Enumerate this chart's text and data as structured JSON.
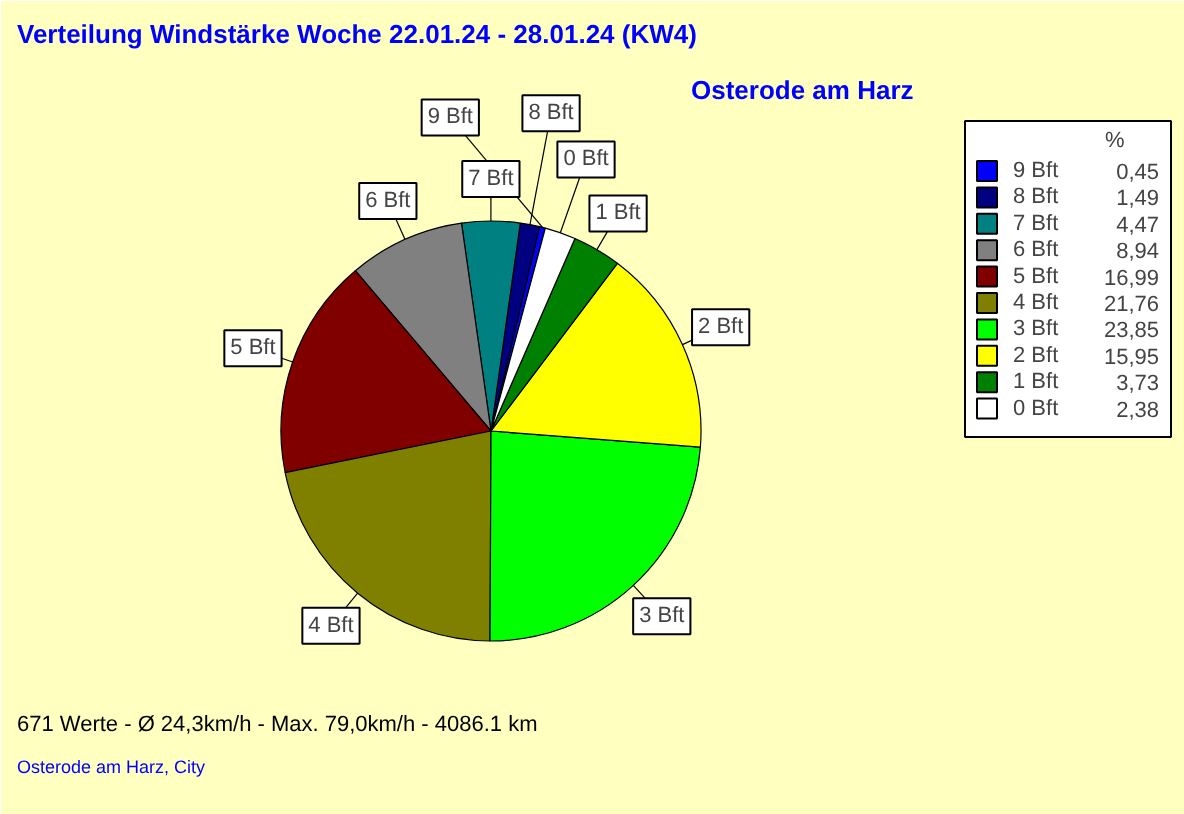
{
  "chart_data": {
    "type": "pie",
    "title": "Verteilung Windstärke  Woche 22.01.24 - 28.01.24 (KW4)",
    "subtitle": "Osterode am Harz",
    "legend_title": "%",
    "categories": [
      "9 Bft",
      "8 Bft",
      "7 Bft",
      "6 Bft",
      "5 Bft",
      "4 Bft",
      "3 Bft",
      "2 Bft",
      "1 Bft",
      "0 Bft"
    ],
    "values": [
      0.45,
      1.49,
      4.47,
      8.94,
      16.99,
      21.76,
      23.85,
      15.95,
      3.73,
      2.38
    ],
    "value_labels": [
      "0,45",
      "1,49",
      "4,47",
      "8,94",
      "16,99",
      "21,76",
      "23,85",
      "15,95",
      "3,73",
      "2,38"
    ],
    "colors": [
      "#0000ff",
      "#000080",
      "#008080",
      "#808080",
      "#800000",
      "#808000",
      "#00ff00",
      "#ffff00",
      "#008000",
      "#ffffff"
    ],
    "legend": "right",
    "annotations": [
      "671 Werte   -   Ø 24,3km/h   -   Max. 79,0km/h   -   4086.1 km",
      "Osterode am Harz, City"
    ]
  }
}
